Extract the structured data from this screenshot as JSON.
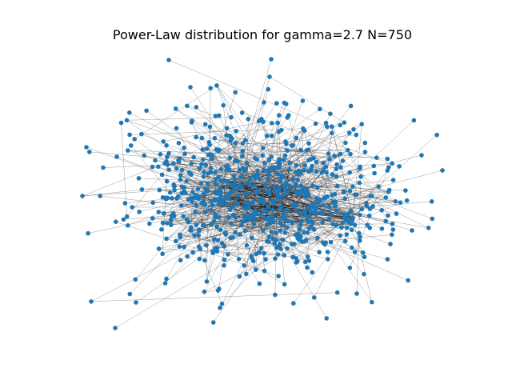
{
  "title": "Power-Law distribution for gamma=2.7 N=750",
  "graph": {
    "model": "power-law",
    "gamma": 2.7,
    "nodes": 750,
    "layout": "force-directed"
  },
  "colors": {
    "node": "#1f77b4",
    "edge": "#000000",
    "background": "#ffffff"
  }
}
